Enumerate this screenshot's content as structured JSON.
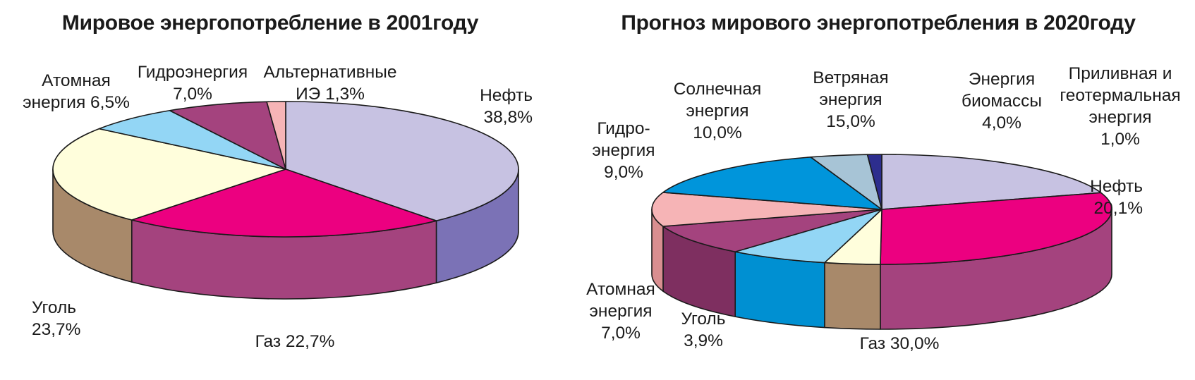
{
  "chart_data": [
    {
      "type": "pie",
      "title": "Мировое энергопотребление в 2001году",
      "slices": [
        {
          "name": "Нефть",
          "value": 38.8,
          "label_lines": [
            "Нефть",
            "38,8%"
          ],
          "color": "#C7C2E2",
          "side": "#7B72B6"
        },
        {
          "name": "Газ",
          "value": 22.7,
          "label_lines": [
            "Газ 22,7%"
          ],
          "color": "#EC0080",
          "side": "#A4437E"
        },
        {
          "name": "Уголь",
          "value": 23.7,
          "label_lines": [
            "Уголь",
            "23,7%"
          ],
          "color": "#FFFEDC",
          "side": "#A8896A"
        },
        {
          "name": "Атомная энергия",
          "value": 6.5,
          "label_lines": [
            "Атомная",
            "энергия 6,5%"
          ],
          "color": "#93D6F5",
          "side": "#0090D2"
        },
        {
          "name": "Гидроэнергия",
          "value": 7.0,
          "label_lines": [
            "Гидроэнергия",
            "7,0%"
          ],
          "color": "#A4437E",
          "side": "#7E2F60"
        },
        {
          "name": "Альтернативные ИЭ",
          "value": 1.3,
          "label_lines": [
            "Альтернативные",
            "ИЭ 1,3%"
          ],
          "color": "#F6B4B6",
          "side": "#D98E90"
        }
      ]
    },
    {
      "type": "pie",
      "title": "Прогноз мирового энергопотребления в 2020году",
      "slices": [
        {
          "name": "Нефть",
          "value": 20.1,
          "label_lines": [
            "Нефть",
            "20,1%"
          ],
          "color": "#C7C2E2",
          "side": "#7B72B6"
        },
        {
          "name": "Газ",
          "value": 30.0,
          "label_lines": [
            "Газ 30,0%"
          ],
          "color": "#EC0080",
          "side": "#A4437E"
        },
        {
          "name": "Уголь",
          "value": 3.9,
          "label_lines": [
            "Уголь",
            "3,9%"
          ],
          "color": "#FFFEDC",
          "side": "#A8896A"
        },
        {
          "name": "Атомная энергия",
          "value": 7.0,
          "label_lines": [
            "Атомная",
            "энергия",
            "7,0%"
          ],
          "color": "#93D6F5",
          "side": "#0090D2"
        },
        {
          "name": "Гидроэнергия",
          "value": 9.0,
          "label_lines": [
            "Гидро-",
            "энергия",
            "9,0%"
          ],
          "color": "#A4437E",
          "side": "#7E2F60"
        },
        {
          "name": "Солнечная энергия",
          "value": 10.0,
          "label_lines": [
            "Солнечная",
            "энергия",
            "10,0%"
          ],
          "color": "#F6B4B6",
          "side": "#D98E90"
        },
        {
          "name": "Ветряная энергия",
          "value": 15.0,
          "label_lines": [
            "Ветряная",
            "энергия",
            "15,0%"
          ],
          "color": "#0095DB",
          "side": "#006FA6"
        },
        {
          "name": "Энергия биомассы",
          "value": 4.0,
          "label_lines": [
            "Энергия",
            "биомассы",
            "4,0%"
          ],
          "color": "#A7C4D6",
          "side": "#7C9AB0"
        },
        {
          "name": "Приливная и геотермальная энергия",
          "value": 1.0,
          "label_lines": [
            "Приливная и",
            "геотермальная",
            "энергия",
            "1,0%"
          ],
          "color": "#2D2E8E",
          "side": "#1D1E66"
        }
      ]
    }
  ]
}
